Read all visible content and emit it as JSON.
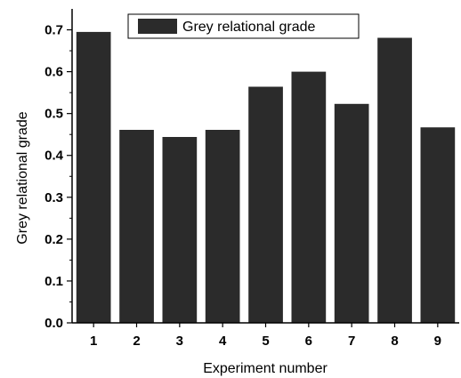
{
  "chart_data": {
    "type": "bar",
    "categories": [
      "1",
      "2",
      "3",
      "4",
      "5",
      "6",
      "7",
      "8",
      "9"
    ],
    "series": [
      {
        "name": "Grey relational grade",
        "values": [
          0.695,
          0.461,
          0.444,
          0.461,
          0.564,
          0.6,
          0.523,
          0.681,
          0.467
        ]
      }
    ],
    "xlabel": "Experiment number",
    "ylabel": "Grey relational grade",
    "ylim": [
      0,
      0.75
    ],
    "yticks": [
      "0.0",
      "0.1",
      "0.2",
      "0.3",
      "0.4",
      "0.5",
      "0.6",
      "0.7"
    ],
    "grid": false,
    "legend_position": "top-center",
    "bar_color": "#2b2b2b"
  }
}
